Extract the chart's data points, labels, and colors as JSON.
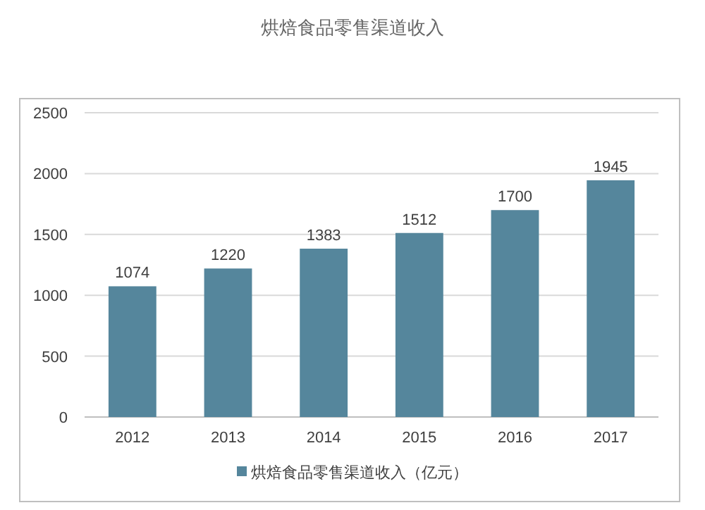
{
  "chart_data": {
    "type": "bar",
    "title": "烘焙食品零售渠道收入",
    "categories": [
      "2012",
      "2013",
      "2014",
      "2015",
      "2016",
      "2017"
    ],
    "series": [
      {
        "name": "烘焙食品零售渠道收入（亿元）",
        "color": "#55869c",
        "values": [
          1074,
          1220,
          1383,
          1512,
          1700,
          1945
        ]
      }
    ],
    "ylim": [
      0,
      2500
    ],
    "yticks": [
      0,
      500,
      1000,
      1500,
      2000,
      2500
    ],
    "grid": "y",
    "legend": "bottom",
    "data_labels": true
  }
}
